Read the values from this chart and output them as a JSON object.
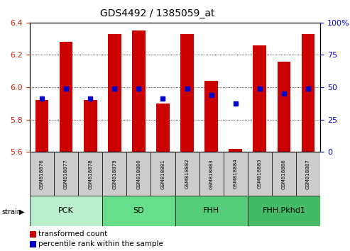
{
  "title": "GDS4492 / 1385059_at",
  "samples": [
    "GSM818876",
    "GSM818877",
    "GSM818878",
    "GSM818879",
    "GSM818880",
    "GSM818881",
    "GSM818882",
    "GSM818883",
    "GSM818884",
    "GSM818885",
    "GSM818886",
    "GSM818887"
  ],
  "red_values": [
    5.92,
    6.28,
    5.92,
    6.33,
    6.35,
    5.9,
    6.33,
    6.04,
    5.62,
    6.26,
    6.16,
    6.33
  ],
  "blue_values": [
    5.93,
    5.99,
    5.93,
    5.99,
    5.99,
    5.93,
    5.99,
    5.95,
    5.9,
    5.99,
    5.96,
    5.99
  ],
  "ylim_left": [
    5.6,
    6.4
  ],
  "yticks_left": [
    5.6,
    5.8,
    6.0,
    6.2,
    6.4
  ],
  "yticks_right": [
    0,
    25,
    50,
    75,
    100
  ],
  "bar_bottom": 5.6,
  "bar_color": "#cc0000",
  "dot_color": "#0000cc",
  "groups": [
    {
      "label": "PCK",
      "start": 0,
      "end": 3,
      "color": "#bbeecc"
    },
    {
      "label": "SD",
      "start": 3,
      "end": 6,
      "color": "#66dd88"
    },
    {
      "label": "FHH",
      "start": 6,
      "end": 9,
      "color": "#55cc77"
    },
    {
      "label": "FHH.Pkhd1",
      "start": 9,
      "end": 12,
      "color": "#44bb66"
    }
  ],
  "tick_label_color_left": "#cc2200",
  "tick_label_color_right": "#0000cc",
  "legend_red_label": "transformed count",
  "legend_blue_label": "percentile rank within the sample",
  "sample_box_color": "#cccccc",
  "title_fontsize": 10,
  "axis_fontsize": 8,
  "sample_fontsize": 5,
  "legend_fontsize": 7.5,
  "group_fontsize": 8
}
